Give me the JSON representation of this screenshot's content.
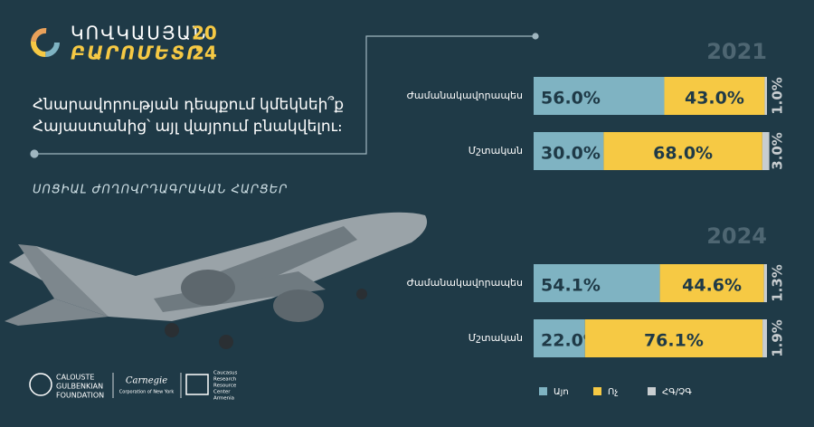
{
  "header": {
    "logo_line1": "ԿՈՎԿԱՍՅԱՆ",
    "logo_line2": "ԲԱՐՈՄԵՏՐ",
    "year_top": "20",
    "year_bottom": "24",
    "question": [
      "Հնարավորության դեպքում կմեկնեի՞ք",
      "Հայաստանից՝ այլ վայրում բնակվելու։"
    ],
    "section": "ՍՈՑԻԱԼ ԺՈՂՈՎՐԴԱԳՐԱԿԱՆ ՀԱՐՑԵՐ"
  },
  "footer": {
    "partners": [
      [
        "CALOUSTE",
        "GULBENKIAN",
        "FOUNDATION"
      ],
      [
        "Carnegie",
        "Corporation of New York"
      ],
      [
        "Caucasus",
        "Research",
        "Resource",
        "Center",
        "Armenia"
      ]
    ]
  },
  "chart_data": [
    {
      "type": "bar",
      "stacked": true,
      "orientation": "horizontal",
      "title": "2021",
      "xlim": [
        0,
        100
      ],
      "categories": [
        "Ժամանակավորապես",
        "Մշտական"
      ],
      "series": [
        {
          "name": "Այո",
          "color": "#7fb3c2",
          "values": [
            56.0,
            30.0
          ],
          "value_labels": [
            "56.0%",
            "30.0%"
          ]
        },
        {
          "name": "Ոչ",
          "color": "#f6c944",
          "values": [
            43.0,
            68.0
          ],
          "value_labels": [
            "43.0%",
            "68.0%"
          ]
        },
        {
          "name": "ՀԳ/ՉԳ",
          "color": "#c8cdd0",
          "values": [
            1.0,
            3.0
          ],
          "value_labels": [
            "1.0%",
            "3.0%"
          ]
        }
      ]
    },
    {
      "type": "bar",
      "stacked": true,
      "orientation": "horizontal",
      "title": "2024",
      "xlim": [
        0,
        100
      ],
      "categories": [
        "Ժամանակավորապես",
        "Մշտական"
      ],
      "series": [
        {
          "name": "Այո",
          "color": "#7fb3c2",
          "values": [
            54.1,
            22.0
          ],
          "value_labels": [
            "54.1%",
            "22.0%"
          ]
        },
        {
          "name": "Ոչ",
          "color": "#f6c944",
          "values": [
            44.6,
            76.1
          ],
          "value_labels": [
            "44.6%",
            "76.1%"
          ]
        },
        {
          "name": "ՀԳ/ՉԳ",
          "color": "#c8cdd0",
          "values": [
            1.3,
            1.9
          ],
          "value_labels": [
            "1.3%",
            "1.9%"
          ]
        }
      ]
    }
  ]
}
